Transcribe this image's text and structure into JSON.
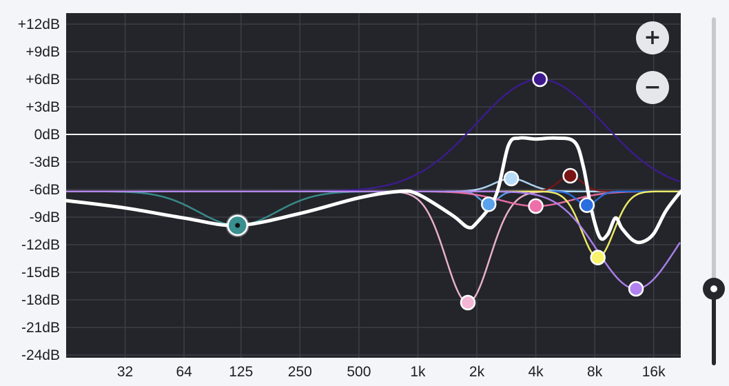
{
  "equalizer": {
    "zoom_in_label": "+",
    "zoom_out_label": "−",
    "y_ticks": [
      {
        "db": 12,
        "label": "+12dB"
      },
      {
        "db": 9,
        "label": "+9dB"
      },
      {
        "db": 6,
        "label": "+6dB"
      },
      {
        "db": 3,
        "label": "+3dB"
      },
      {
        "db": 0,
        "label": "0dB"
      },
      {
        "db": -3,
        "label": "-3dB"
      },
      {
        "db": -6,
        "label": "-6dB"
      },
      {
        "db": -9,
        "label": "-9dB"
      },
      {
        "db": -12,
        "label": "-12dB"
      },
      {
        "db": -15,
        "label": "-15dB"
      },
      {
        "db": -18,
        "label": "-18dB"
      },
      {
        "db": -21,
        "label": "-21dB"
      },
      {
        "db": -24,
        "label": "-24dB"
      }
    ],
    "x_ticks": [
      {
        "hz": 32,
        "label": "32"
      },
      {
        "hz": 64,
        "label": "64"
      },
      {
        "hz": 125,
        "label": "125"
      },
      {
        "hz": 250,
        "label": "250"
      },
      {
        "hz": 500,
        "label": "500"
      },
      {
        "hz": 1000,
        "label": "1k"
      },
      {
        "hz": 2000,
        "label": "2k"
      },
      {
        "hz": 4000,
        "label": "4k"
      },
      {
        "hz": 8000,
        "label": "8k"
      },
      {
        "hz": 16000,
        "label": "16k"
      }
    ],
    "ylim": [
      -24,
      12
    ],
    "xlim_hz": [
      16,
      22000
    ],
    "baseline_db": -6.2,
    "colors": {
      "plot_bg": "#23252a",
      "grid": "#3c3f46",
      "zero_line": "#ffffff",
      "combined_curve": "#ffffff"
    },
    "bands": [
      {
        "name": "band-1",
        "freq": 120,
        "gain": -9.9,
        "q": 0.9,
        "color": "#3a8f8f",
        "selected": true
      },
      {
        "name": "band-2",
        "freq": 1800,
        "gain": -18.3,
        "q": 1.6,
        "color": "#f3b6d4"
      },
      {
        "name": "band-3",
        "freq": 2300,
        "gain": -7.6,
        "q": 4.0,
        "color": "#5aa2ec"
      },
      {
        "name": "band-4",
        "freq": 3000,
        "gain": -4.8,
        "q": 2.0,
        "color": "#b6dcfa"
      },
      {
        "name": "band-5",
        "freq": 4200,
        "gain": 6.0,
        "q": 0.55,
        "color": "#3e1a8f"
      },
      {
        "name": "band-6",
        "freq": 4000,
        "gain": -7.8,
        "q": 1.0,
        "color": "#ef6fa9"
      },
      {
        "name": "band-7",
        "freq": 6000,
        "gain": -4.5,
        "q": 3.0,
        "color": "#7a1414"
      },
      {
        "name": "band-8",
        "freq": 7300,
        "gain": -7.7,
        "q": 3.5,
        "color": "#2a6fe0"
      },
      {
        "name": "band-9",
        "freq": 8300,
        "gain": -13.4,
        "q": 2.2,
        "color": "#f8f36a"
      },
      {
        "name": "band-10",
        "freq": 13000,
        "gain": -16.8,
        "q": 0.9,
        "color": "#b083f0"
      }
    ],
    "combined_curve": [
      [
        16,
        -7.2
      ],
      [
        32,
        -8.0
      ],
      [
        64,
        -9.1
      ],
      [
        120,
        -9.9
      ],
      [
        250,
        -8.6
      ],
      [
        500,
        -6.9
      ],
      [
        800,
        -6.2
      ],
      [
        1000,
        -6.5
      ],
      [
        1500,
        -8.8
      ],
      [
        1800,
        -10.1
      ],
      [
        2000,
        -9.6
      ],
      [
        2500,
        -6.7
      ],
      [
        2900,
        -1.2
      ],
      [
        3300,
        -0.4
      ],
      [
        4000,
        -0.5
      ],
      [
        5000,
        -0.4
      ],
      [
        6300,
        -0.8
      ],
      [
        7000,
        -3.5
      ],
      [
        7700,
        -8.2
      ],
      [
        8500,
        -11.2
      ],
      [
        9300,
        -10.9
      ],
      [
        10200,
        -9.1
      ],
      [
        11000,
        -10.2
      ],
      [
        12500,
        -11.5
      ],
      [
        14000,
        -11.7
      ],
      [
        16000,
        -10.8
      ],
      [
        18500,
        -8.3
      ],
      [
        22000,
        -6.2
      ]
    ],
    "slider": {
      "value": 0.22
    }
  }
}
